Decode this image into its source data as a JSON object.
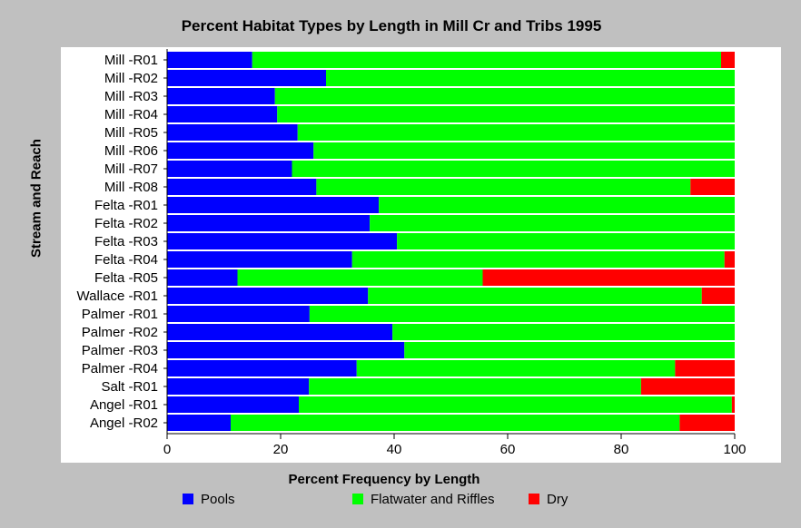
{
  "chart_data": {
    "type": "bar",
    "orientation": "horizontal",
    "stacked": true,
    "title": "Percent Habitat Types by Length in Mill Cr and Tribs 1995",
    "xlabel": "Percent Frequency by Length",
    "ylabel": "Stream and Reach",
    "xlim": [
      0,
      100
    ],
    "xticks": [
      "0",
      "20",
      "40",
      "60",
      "80",
      "100"
    ],
    "categories": [
      "Mill -R01",
      "Mill -R02",
      "Mill -R03",
      "Mill -R04",
      "Mill -R05",
      "Mill -R06",
      "Mill -R07",
      "Mill -R08",
      "Felta -R01",
      "Felta -R02",
      "Felta -R03",
      "Felta -R04",
      "Felta -R05",
      "Wallace -R01",
      "Palmer -R01",
      "Palmer -R02",
      "Palmer -R03",
      "Palmer -R04",
      "Salt -R01",
      "Angel -R01",
      "Angel -R02"
    ],
    "series": [
      {
        "name": "Pools",
        "color": "#0000ff",
        "values": [
          15,
          28,
          19,
          19.4,
          23,
          25.8,
          22,
          26.3,
          37.3,
          35.7,
          40.5,
          32.6,
          12.4,
          35.4,
          25.1,
          39.7,
          41.8,
          33.4,
          25,
          23.2,
          11.2
        ]
      },
      {
        "name": "Flatwater and Riffles",
        "color": "#00ff00",
        "values": [
          82.6,
          72,
          81,
          80.6,
          77,
          74.2,
          78,
          65.9,
          62.7,
          64.3,
          59.5,
          65.6,
          43.2,
          58.8,
          74.9,
          60.3,
          58.2,
          56.1,
          58.5,
          76.3,
          79.1
        ]
      },
      {
        "name": "Dry",
        "color": "#ff0000",
        "values": [
          2.4,
          0,
          0,
          0,
          0,
          0,
          0,
          7.8,
          0,
          0,
          0,
          1.8,
          44.4,
          5.8,
          0,
          0,
          0,
          10.5,
          16.5,
          0.5,
          9.7
        ]
      }
    ],
    "grid": false,
    "legend_position": "bottom"
  }
}
